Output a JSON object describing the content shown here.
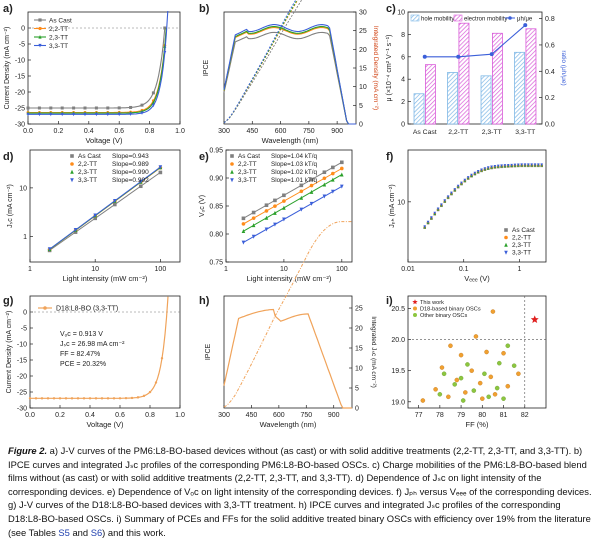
{
  "colors": {
    "ascast": "#808080",
    "tt22": "#ff8c1a",
    "tt23": "#2aa02a",
    "tt33": "#3b5fd9",
    "d18": "#f0a35a",
    "hole": "#7fb8e6",
    "electron": "#d95cd9",
    "ratio": "#3b5fd9",
    "star": "#e0201f",
    "dot_orange": "#f0a030",
    "dot_green": "#8cc63f"
  },
  "chart_data": [
    {
      "id": "a",
      "panel_label": "a)",
      "type": "line",
      "xlabel": "Voltage (V)",
      "ylabel": "Current Density (mA cm⁻²)",
      "xlim": [
        0,
        1.0
      ],
      "ylim": [
        -30,
        5
      ],
      "xticks": [
        "0.0",
        "0.2",
        "0.4",
        "0.6",
        "0.8",
        "1.0"
      ],
      "yticks": [
        "0",
        "-5",
        "-10",
        "-15",
        "-20",
        "-25",
        "-30"
      ],
      "legend": [
        "As Cast",
        "2,2-TT",
        "2,3-TT",
        "3,3-TT"
      ],
      "series": [
        {
          "name": "As Cast",
          "jsc": -25.0,
          "voc": 0.9
        },
        {
          "name": "2,2-TT",
          "jsc": -26.4,
          "voc": 0.91
        },
        {
          "name": "2,3-TT",
          "jsc": -26.6,
          "voc": 0.91
        },
        {
          "name": "3,3-TT",
          "jsc": -26.98,
          "voc": 0.913
        }
      ]
    },
    {
      "id": "b",
      "panel_label": "b)",
      "type": "line",
      "xlabel": "Wavelength (nm)",
      "ylabel": "IPCE",
      "y2label": "Integrated Density (mA cm⁻²)",
      "xlim": [
        300,
        1000
      ],
      "xticks": [
        "300",
        "450",
        "600",
        "750",
        "900"
      ],
      "y2ticks": [
        "0",
        "5",
        "10",
        "15",
        "20",
        "25",
        "30"
      ]
    },
    {
      "id": "c",
      "panel_label": "c)",
      "type": "bar",
      "categories": [
        "As Cast",
        "2,2-TT",
        "2,3-TT",
        "3,3-TT"
      ],
      "ylabel": "μ (×10⁻⁴ cm² V⁻¹ s⁻¹)",
      "y2label": "ratio (μh/μe)",
      "yticks": [
        "0",
        "2",
        "4",
        "6",
        "8",
        "10"
      ],
      "y2ticks": [
        "0.0",
        "0.2",
        "0.4",
        "0.6",
        "0.8"
      ],
      "legend": [
        "hole mobility",
        "electron mobility",
        "μh/μe"
      ],
      "series": [
        {
          "name": "hole mobility",
          "values": [
            2.7,
            4.6,
            4.3,
            6.4
          ]
        },
        {
          "name": "electron mobility",
          "values": [
            5.3,
            9.0,
            8.1,
            8.5
          ]
        },
        {
          "name": "μh/μe",
          "values": [
            0.51,
            0.51,
            0.53,
            0.75
          ]
        }
      ]
    },
    {
      "id": "d",
      "panel_label": "d)",
      "type": "scatter",
      "xlabel": "Light intensity (mW cm⁻²)",
      "ylabel": "Jₛᴄ (mA cm⁻²)",
      "xscale": "log",
      "yscale": "log",
      "xticks": [
        "1",
        "10",
        "100"
      ],
      "yticks": [
        "1",
        "10"
      ],
      "legend": [
        {
          "name": "As Cast",
          "slope": "Slope=0.943"
        },
        {
          "name": "2,2-TT",
          "slope": "Slope=0.989"
        },
        {
          "name": "2,3-TT",
          "slope": "Slope=0.990"
        },
        {
          "name": "3,3-TT",
          "slope": "Slope=0.992"
        }
      ],
      "x": [
        2,
        5,
        10,
        20,
        50,
        100
      ]
    },
    {
      "id": "e",
      "panel_label": "e)",
      "type": "scatter",
      "xlabel": "Light intensity (mW cm⁻²)",
      "ylabel": "Vₒᴄ (V)",
      "xscale": "log",
      "ylim": [
        0.75,
        0.95
      ],
      "xticks": [
        "1",
        "10",
        "100"
      ],
      "yticks": [
        "0.75",
        "0.80",
        "0.85",
        "0.90",
        "0.95"
      ],
      "legend": [
        {
          "name": "As Cast",
          "slope": "Slope=1.04 kT/q"
        },
        {
          "name": "2,2-TT",
          "slope": "Slope=1.03 kT/q"
        },
        {
          "name": "2,3-TT",
          "slope": "Slope=1.02 kT/q"
        },
        {
          "name": "3,3-TT",
          "slope": "Slope=1.01 kT/q"
        }
      ],
      "x": [
        2,
        3,
        5,
        7,
        10,
        20,
        30,
        50,
        70,
        100
      ],
      "series": [
        {
          "name": "As Cast",
          "v2": 0.828,
          "v100": 0.928
        },
        {
          "name": "2,2-TT",
          "v2": 0.818,
          "v100": 0.917
        },
        {
          "name": "2,3-TT",
          "v2": 0.805,
          "v100": 0.906
        },
        {
          "name": "3,3-TT",
          "v2": 0.785,
          "v100": 0.885
        }
      ]
    },
    {
      "id": "f",
      "panel_label": "f)",
      "type": "scatter",
      "xlabel": "Vₑₑₑ (V)",
      "ylabel": "Jₚₕ (mA cm⁻²)",
      "xscale": "log",
      "yscale": "log",
      "xticks": [
        "0.01",
        "0.1",
        "1"
      ],
      "yticks": [
        "10"
      ],
      "legend": [
        "As Cast",
        "2,2-TT",
        "2,3-TT",
        "3,3-TT"
      ]
    },
    {
      "id": "g",
      "panel_label": "g)",
      "type": "line",
      "xlabel": "Voltage (V)",
      "ylabel": "Current Density (mA cm⁻²)",
      "xlim": [
        0,
        1.0
      ],
      "ylim": [
        -30,
        5
      ],
      "xticks": [
        "0.0",
        "0.2",
        "0.4",
        "0.6",
        "0.8",
        "1.0"
      ],
      "yticks": [
        "0",
        "-5",
        "-10",
        "-15",
        "-20",
        "-25",
        "-30"
      ],
      "legend": [
        "D18:L8-BO (3,3-TT)"
      ],
      "annotations": [
        "Vₒᴄ = 0.913 V",
        "Jₛᴄ = 26.98 mA cm⁻²",
        "FF = 82.47%",
        "PCE = 20.32%"
      ]
    },
    {
      "id": "h",
      "panel_label": "h)",
      "type": "line",
      "xlabel": "Wavelength (nm)",
      "ylabel": "IPCE",
      "y2label": "Integrated Jₛᴄ (mA cm⁻²)",
      "xlim": [
        300,
        1000
      ],
      "xticks": [
        "300",
        "450",
        "600",
        "750",
        "900"
      ],
      "y2ticks": [
        "0",
        "5",
        "10",
        "15",
        "20",
        "25"
      ]
    },
    {
      "id": "i",
      "panel_label": "i)",
      "type": "scatter",
      "xlabel": "FF (%)",
      "ylabel": "Efficiency (%)",
      "xlim": [
        76.5,
        83
      ],
      "ylim": [
        18.9,
        20.7
      ],
      "xticks": [
        "77",
        "78",
        "79",
        "80",
        "81",
        "82"
      ],
      "yticks": [
        "19.0",
        "19.5",
        "20.0",
        "20.5"
      ],
      "legend": [
        "This work",
        "D18-based binary OSCs",
        "Other binary OSCs"
      ],
      "this_work": {
        "ff": 82.47,
        "pce": 20.32
      },
      "d18_points": [
        [
          80.5,
          20.45
        ],
        [
          79.7,
          20.05
        ],
        [
          78.5,
          19.9
        ],
        [
          79.0,
          19.75
        ],
        [
          80.2,
          19.8
        ],
        [
          81.0,
          19.78
        ],
        [
          78.1,
          19.55
        ],
        [
          79.5,
          19.5
        ],
        [
          80.4,
          19.4
        ],
        [
          78.8,
          19.35
        ],
        [
          79.9,
          19.3
        ],
        [
          81.2,
          19.25
        ],
        [
          77.8,
          19.2
        ],
        [
          79.2,
          19.15
        ],
        [
          80.6,
          19.12
        ],
        [
          78.4,
          19.08
        ],
        [
          81.7,
          19.45
        ],
        [
          80.0,
          19.05
        ],
        [
          77.2,
          19.02
        ]
      ],
      "other_points": [
        [
          81.2,
          19.9
        ],
        [
          80.8,
          19.62
        ],
        [
          79.3,
          19.6
        ],
        [
          78.2,
          19.45
        ],
        [
          80.1,
          19.45
        ],
        [
          79.0,
          19.38
        ],
        [
          81.5,
          19.58
        ],
        [
          78.7,
          19.28
        ],
        [
          80.7,
          19.22
        ],
        [
          79.6,
          19.18
        ],
        [
          78.0,
          19.12
        ],
        [
          80.3,
          19.08
        ],
        [
          81.0,
          19.05
        ],
        [
          79.1,
          19.02
        ]
      ]
    }
  ],
  "caption": {
    "label": "Figure 2.",
    "text": " a) J-V curves of the PM6:L8-BO-based devices without (as cast) or with solid additive treatments (2,2-TT, 2,3-TT, and 3,3-TT). b) IPCE curves and integrated Jₛᴄ profiles of the corresponding PM6:L8-BO-based OSCs. c) Charge mobilities of the PM6:L8-BO-based blend films without (as cast) or with solid additive treatments (2,2-TT, 2,3-TT, and 3,3-TT). d) Dependence of Jₛᴄ on light intensity of the corresponding devices. e) Dependence of Vₒᴄ on light intensity of the corresponding devices. f) Jₚₕ versus Vₑₑₑ of the corresponding devices. g) J-V curves of the D18:L8-BO-based devices with 3,3-TT treatment. h) IPCE curves and integrated Jₛᴄ profiles of the corresponding D18:L8-BO-based OSCs. i) Summary of PCEs and FFs for the solid additive treated binary OSCs with efficiency over 19% from the literature (see Tables ",
    "link1": "S5",
    "mid": " and ",
    "link2": "S6",
    "end": ") and this work."
  }
}
